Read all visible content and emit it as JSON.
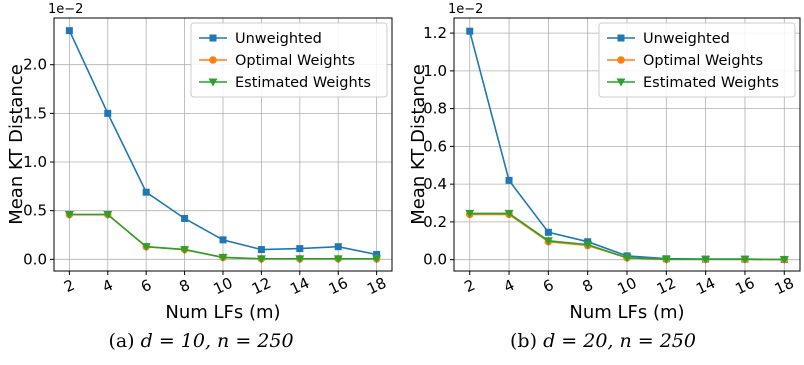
{
  "chart_data": [
    {
      "type": "line",
      "xlabel": "Num LFs (m)",
      "ylabel": "Mean KT Distance",
      "y_multiplier": "1e−2",
      "x": [
        2,
        4,
        6,
        8,
        10,
        12,
        14,
        16,
        18
      ],
      "xticks": [
        "2",
        "4",
        "6",
        "8",
        "10",
        "12",
        "14",
        "16",
        "18"
      ],
      "yticks": [
        "0.0",
        "0.5",
        "1.0",
        "1.5",
        "2.0"
      ],
      "xlim": [
        1.2,
        18.8
      ],
      "ylim": [
        -0.12,
        2.48
      ],
      "grid": true,
      "legend_position": "top-right",
      "series": [
        {
          "name": "Unweighted",
          "color": "#1f77b4",
          "marker": "square",
          "values": [
            2.35,
            1.5,
            0.69,
            0.42,
            0.2,
            0.1,
            0.11,
            0.13,
            0.05
          ]
        },
        {
          "name": "Optimal Weights",
          "color": "#ff7f0e",
          "marker": "circle",
          "values": [
            0.46,
            0.46,
            0.13,
            0.1,
            0.02,
            0.005,
            0.005,
            0.005,
            0.005
          ]
        },
        {
          "name": "Estimated Weights",
          "color": "#2ca02c",
          "marker": "triangle-down",
          "values": [
            0.46,
            0.46,
            0.13,
            0.1,
            0.02,
            0.005,
            0.005,
            0.005,
            0.005
          ]
        }
      ]
    },
    {
      "type": "line",
      "xlabel": "Num LFs (m)",
      "ylabel": "Mean KT Distance",
      "y_multiplier": "1e−2",
      "x": [
        2,
        4,
        6,
        8,
        10,
        12,
        14,
        16,
        18
      ],
      "xticks": [
        "2",
        "4",
        "6",
        "8",
        "10",
        "12",
        "14",
        "16",
        "18"
      ],
      "yticks": [
        "0.0",
        "0.2",
        "0.4",
        "0.6",
        "0.8",
        "1.0",
        "1.2"
      ],
      "xlim": [
        1.2,
        18.8
      ],
      "ylim": [
        -0.06,
        1.28
      ],
      "grid": true,
      "legend_position": "top-right",
      "series": [
        {
          "name": "Unweighted",
          "color": "#1f77b4",
          "marker": "square",
          "values": [
            1.21,
            0.42,
            0.145,
            0.095,
            0.02,
            0.005,
            0.003,
            0.003,
            0.001
          ]
        },
        {
          "name": "Optimal Weights",
          "color": "#ff7f0e",
          "marker": "circle",
          "values": [
            0.24,
            0.24,
            0.095,
            0.075,
            0.01,
            0.002,
            0.002,
            0.002,
            0.001
          ]
        },
        {
          "name": "Estimated Weights",
          "color": "#2ca02c",
          "marker": "triangle-down",
          "values": [
            0.245,
            0.245,
            0.1,
            0.08,
            0.01,
            0.002,
            0.002,
            0.002,
            0.001
          ]
        }
      ]
    }
  ],
  "captions": [
    {
      "label": "(a)",
      "math": "d = 10, n = 250"
    },
    {
      "label": "(b)",
      "math": "d = 20, n = 250"
    }
  ]
}
